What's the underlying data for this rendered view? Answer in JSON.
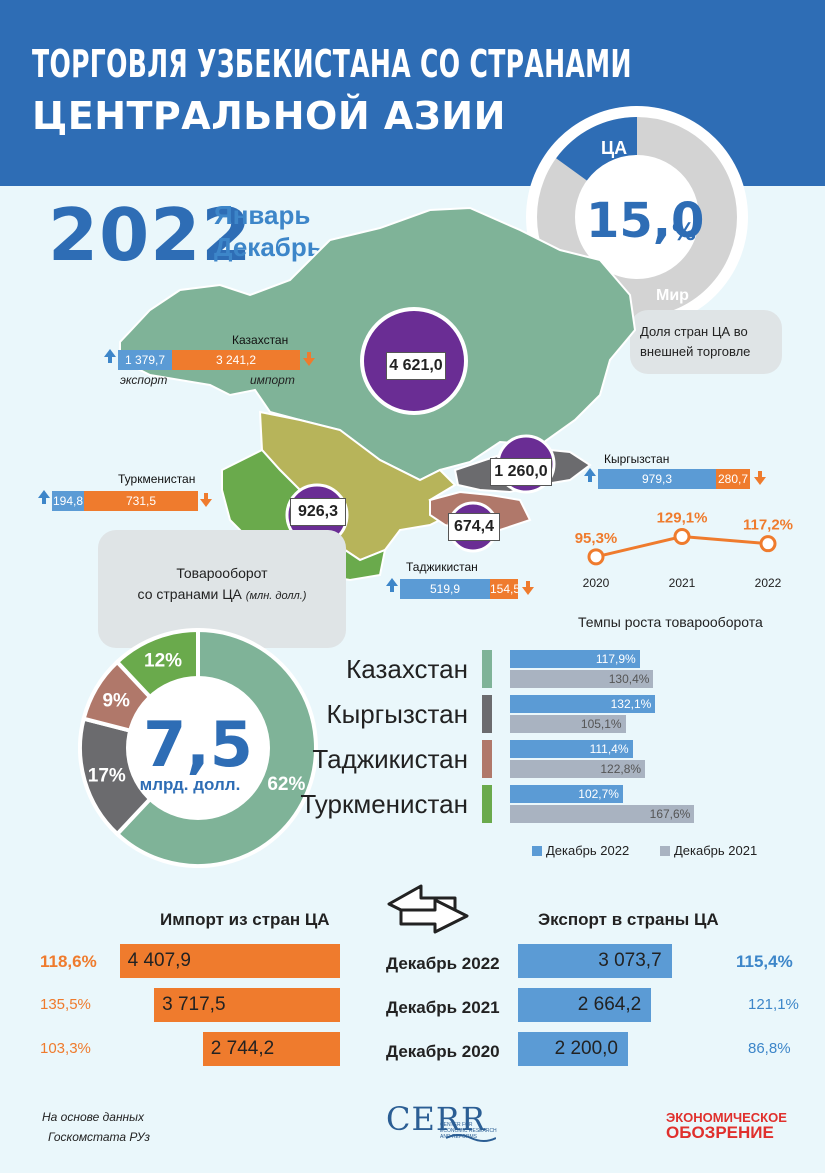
{
  "header": {
    "title_line1": "ТОРГОВЛЯ УЗБЕКИСТАНА СО СТРАНАМИ",
    "title_line2": "ЦЕНТРАЛЬНОЙ АЗИИ"
  },
  "period": {
    "year": "2022",
    "from": "Январь",
    "to": "Декабрь"
  },
  "share": {
    "ca_label": "ЦА",
    "world_label": "Мир",
    "value": "15,0",
    "unit": "%",
    "ca_share_percent": 15.0,
    "caption": "Доля стран ЦА во внешней торговле"
  },
  "map_countries": [
    {
      "name": "Казахстан",
      "turnover": "4 621,0",
      "export": "1 379,7",
      "import": "3 241,2",
      "export_label": "экспорт",
      "import_label": "импорт"
    },
    {
      "name": "Кыргызстан",
      "turnover": "1 260,0",
      "export": "979,3",
      "import": "280,7"
    },
    {
      "name": "Туркменистан",
      "turnover": "926,3",
      "export": "194,8",
      "import": "731,5"
    },
    {
      "name": "Таджикистан",
      "turnover": "674,4",
      "export": "519,9",
      "import": "154,5"
    }
  ],
  "trend": {
    "points": [
      {
        "year": "2020",
        "label": "95,3%",
        "value": 95.3
      },
      {
        "year": "2021",
        "label": "129,1%",
        "value": 129.1
      },
      {
        "year": "2022",
        "label": "117,2%",
        "value": 117.2
      }
    ]
  },
  "turnover_card": {
    "line1": "Товарооборот",
    "line2": "со странами ЦА",
    "unit": "(млн. долл.)"
  },
  "chart_data": [
    {
      "type": "pie",
      "title": "",
      "center_value": "7,5",
      "center_unit": "млрд. долл.",
      "labels": [
        "Казахстан",
        "Кыргызстан",
        "Таджикистан",
        "Туркменистан"
      ],
      "values": [
        62,
        17,
        9,
        12
      ],
      "value_labels": [
        "62%",
        "17%",
        "9%",
        "12%"
      ],
      "colors": [
        "#7fb398",
        "#6b6b6e",
        "#b0786a",
        "#6aaa4c"
      ]
    },
    {
      "type": "bar",
      "title": "Темпы роста товарооборота",
      "categories": [
        "Казахстан",
        "Кыргызстан",
        "Таджикистан",
        "Туркменистан"
      ],
      "category_colors": [
        "#7fb398",
        "#6b6b6e",
        "#b0786a",
        "#6aaa4c"
      ],
      "series": [
        {
          "name": "Декабрь 2022",
          "values": [
            117.9,
            132.1,
            111.4,
            102.7
          ],
          "labels": [
            "117,9%",
            "132,1%",
            "111,4%",
            "102,7%"
          ],
          "color": "#5b9bd5"
        },
        {
          "name": "Декабрь 2021",
          "values": [
            130.4,
            105.1,
            122.8,
            167.6
          ],
          "labels": [
            "130,4%",
            "105,1%",
            "122,8%",
            "167,6%"
          ],
          "color": "#a9b3c1"
        }
      ]
    },
    {
      "type": "bar",
      "title": "Импорт из стран ЦА",
      "categories": [
        "Декабрь 2022",
        "Декабрь 2021",
        "Декабрь 2020"
      ],
      "values": [
        4407.9,
        3717.5,
        2744.2
      ],
      "labels": [
        "4 407,9",
        "3 717,5",
        "2 744,2"
      ],
      "growth": [
        "118,6%",
        "135,5%",
        "103,3%"
      ],
      "color": "#ef7b2d"
    },
    {
      "type": "bar",
      "title": "Экспорт в страны ЦА",
      "categories": [
        "Декабрь 2022",
        "Декабрь 2021",
        "Декабрь 2020"
      ],
      "values": [
        3073.7,
        2664.2,
        2200.0
      ],
      "labels": [
        "3 073,7",
        "2 664,2",
        "2 200,0"
      ],
      "growth": [
        "115,4%",
        "121,1%",
        "86,8%"
      ],
      "color": "#5b9bd5"
    }
  ],
  "footer": {
    "source_line1": "На основе данных",
    "source_line2": "Госкомстата РУз",
    "cerr_logo": "CERR",
    "cerr_sub": "CENTER FOR ECONOMIC RESEARCH AND REFORMS",
    "eo_line1": "ЭКОНОМИЧЕСКОЕ",
    "eo_line2": "ОБОЗРЕНИЕ"
  },
  "colors": {
    "blue": "#2e6db5",
    "orange": "#ef7b2d",
    "purple": "#6a2d94"
  }
}
